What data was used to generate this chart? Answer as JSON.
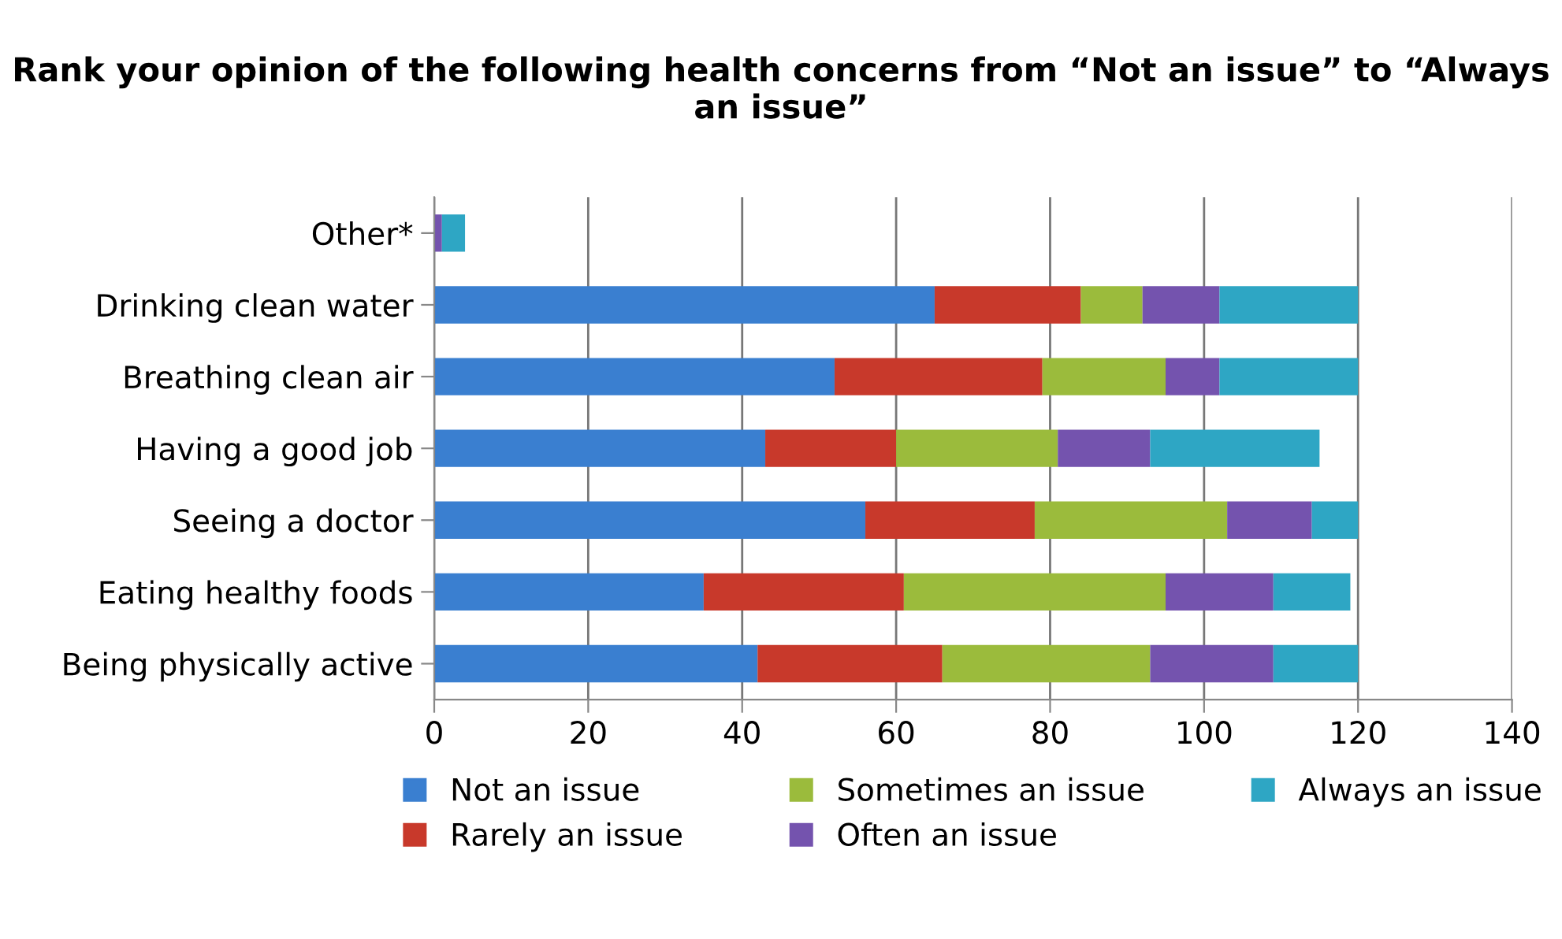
{
  "chart_data": {
    "type": "bar",
    "orientation": "horizontal",
    "stacked": true,
    "title": "Rank your opinion of the following health concerns from “Not an issue” to “Always an issue”",
    "categories": [
      "Other*",
      "Drinking clean water",
      "Breathing clean air",
      "Having a good job",
      "Seeing a doctor",
      "Eating healthy foods",
      "Being physically active"
    ],
    "series": [
      {
        "name": "Not an issue",
        "color": "#3a7fd0",
        "values": [
          0,
          65,
          52,
          43,
          56,
          35,
          42
        ]
      },
      {
        "name": "Rarely an issue",
        "color": "#c8392b",
        "values": [
          0,
          19,
          27,
          17,
          22,
          26,
          24
        ]
      },
      {
        "name": "Sometimes an issue",
        "color": "#9bbb3c",
        "values": [
          0,
          8,
          16,
          21,
          25,
          34,
          27
        ]
      },
      {
        "name": "Often an issue",
        "color": "#7453ae",
        "values": [
          1,
          10,
          7,
          12,
          11,
          14,
          16
        ]
      },
      {
        "name": "Always an issue",
        "color": "#2ea6c4",
        "values": [
          3,
          18,
          18,
          22,
          6,
          10,
          11
        ]
      }
    ],
    "xlim": [
      0,
      140
    ],
    "xticks": [
      0,
      20,
      40,
      60,
      80,
      100,
      120,
      140
    ],
    "grid": "x",
    "legend": "bottom"
  }
}
